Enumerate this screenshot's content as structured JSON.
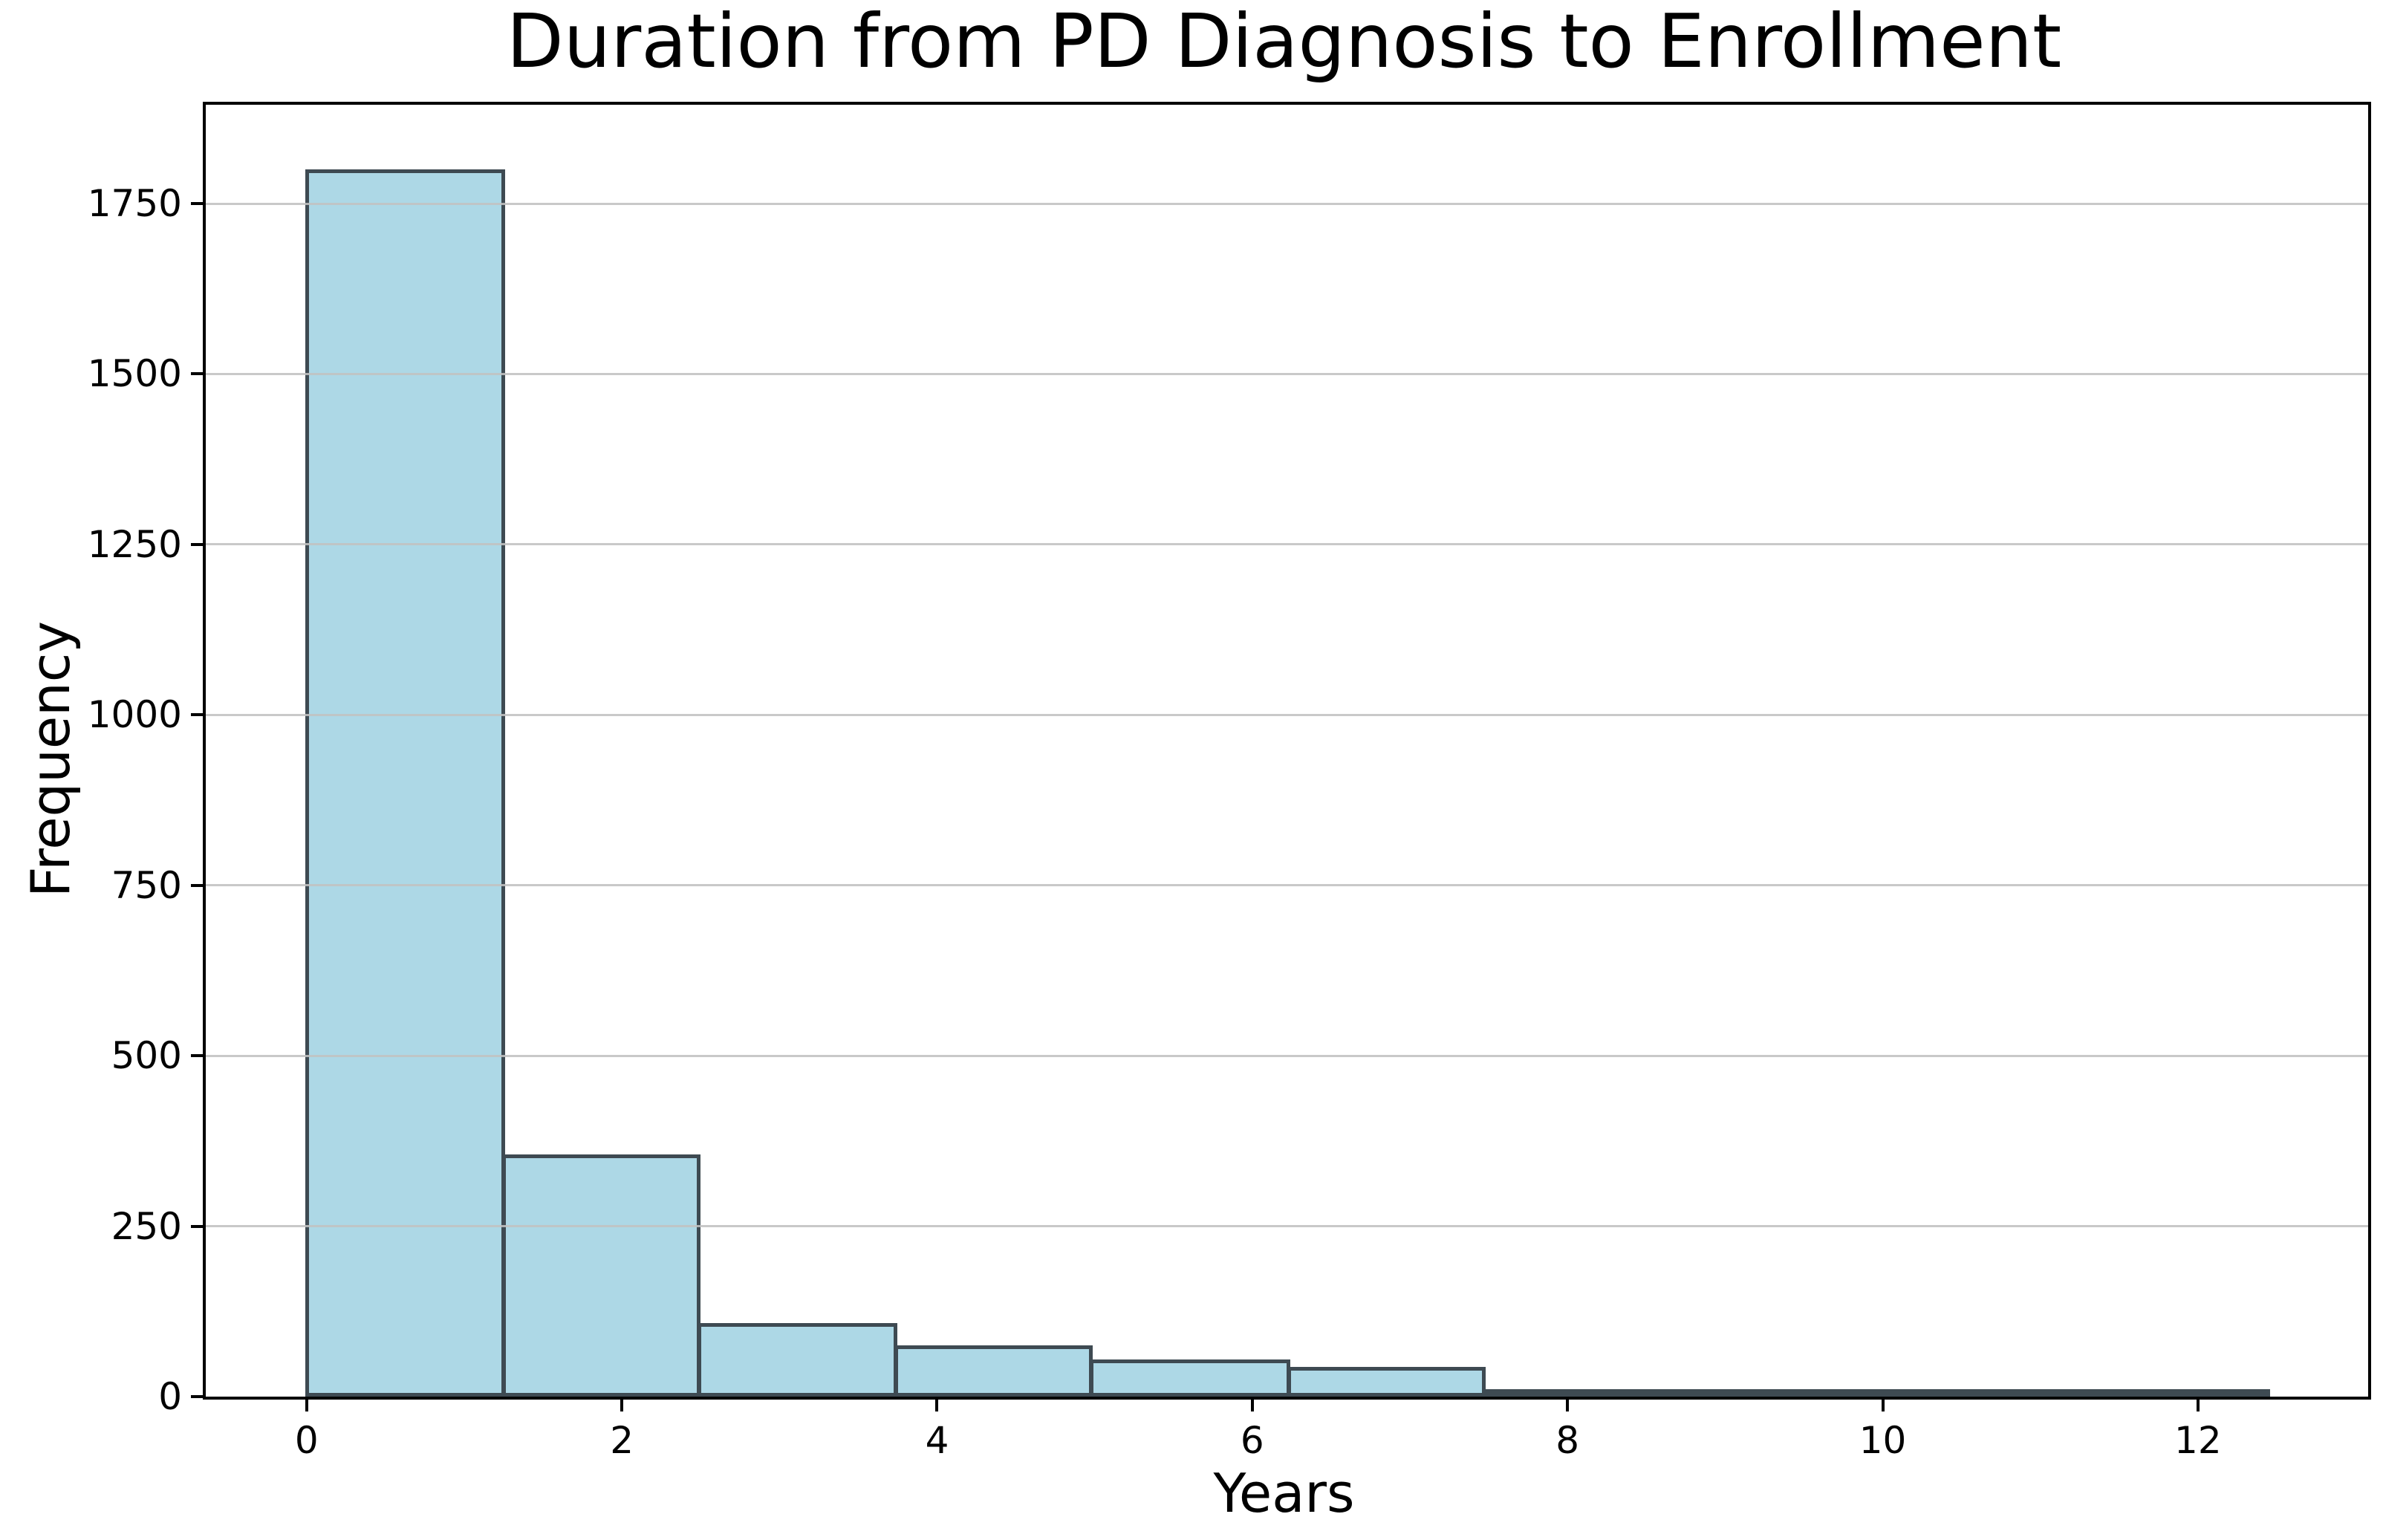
{
  "figure": {
    "title": "Duration from PD Diagnosis to Enrollment"
  },
  "chart_data": {
    "type": "bar",
    "subtype": "histogram",
    "title": "Duration from PD Diagnosis to Enrollment",
    "xlabel": "Years",
    "ylabel": "Frequency",
    "bin_edges": [
      0,
      1.25,
      2.49,
      3.74,
      4.98,
      6.23,
      7.47,
      8.72,
      9.96,
      11.21,
      12.45
    ],
    "counts": [
      1800,
      355,
      108,
      75,
      55,
      44,
      4,
      3,
      3,
      4
    ],
    "x_ticks": [
      0,
      2,
      4,
      6,
      8,
      10,
      12
    ],
    "y_ticks": [
      0,
      250,
      500,
      750,
      1000,
      1250,
      1500,
      1750
    ],
    "xlim": [
      -0.64,
      13.08
    ],
    "ylim": [
      0,
      1895
    ],
    "grid": {
      "axis": "y",
      "on": true
    },
    "legend": "none",
    "colors": {
      "bar_fill": "#ADD8E6",
      "bar_edge": "#3E4A52",
      "grid_color": "#C2C2C2",
      "spine_color": "#000000",
      "text_color": "#000000"
    }
  }
}
